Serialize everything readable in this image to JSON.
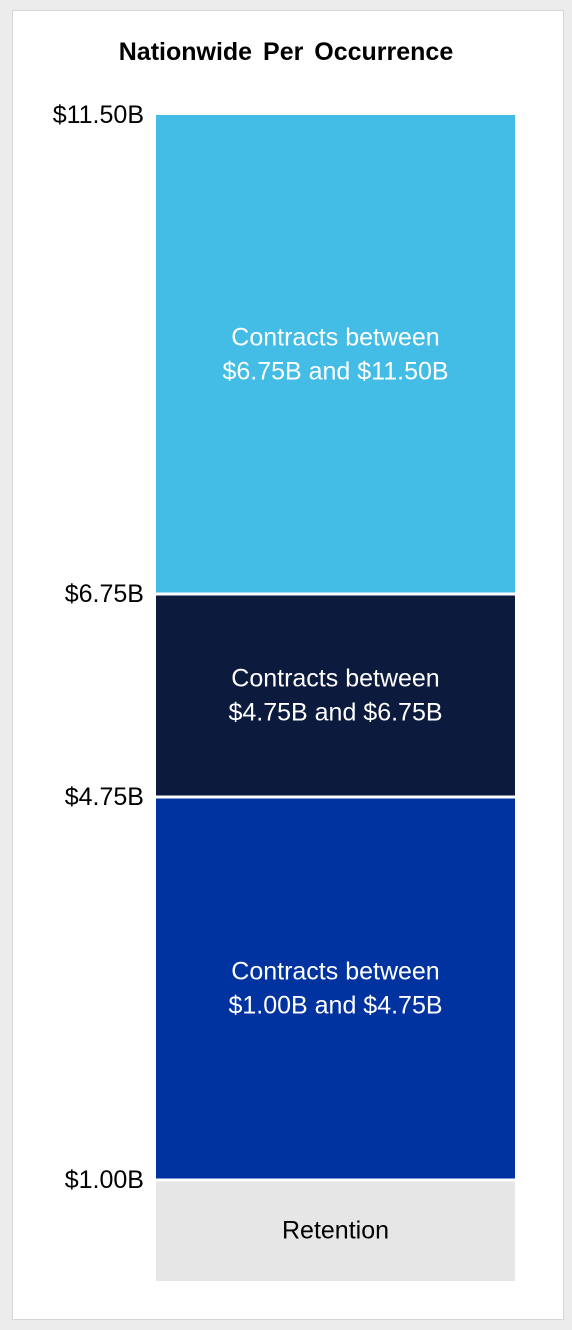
{
  "chart_data": {
    "type": "stacked-tower",
    "title": "Nationwide Per Occurrence",
    "xlabel": "",
    "ylabel": "",
    "ylim": [
      0.0,
      11.5
    ],
    "grid": false,
    "legend": "none",
    "ticks": [
      {
        "value": 11.5,
        "label": "$11.50B"
      },
      {
        "value": 6.75,
        "label": "$6.75B"
      },
      {
        "value": 4.75,
        "label": "$4.75B"
      },
      {
        "value": 1.0,
        "label": "$1.00B"
      }
    ],
    "segments": [
      {
        "low": 0.0,
        "high": 1.0,
        "label_lines": [
          "Retention"
        ],
        "color": "#e6e6e6",
        "text_color": "#000000"
      },
      {
        "low": 1.0,
        "high": 4.75,
        "label_lines": [
          "Contracts between",
          "$1.00B and $4.75B"
        ],
        "color": "#0033a0",
        "text_color": "#ffffff"
      },
      {
        "low": 4.75,
        "high": 6.75,
        "label_lines": [
          "Contracts between",
          "$4.75B and $6.75B"
        ],
        "color": "#0c1a3e",
        "text_color": "#ffffff"
      },
      {
        "low": 6.75,
        "high": 11.5,
        "label_lines": [
          "Contracts between",
          "$6.75B and $11.50B"
        ],
        "color": "#43bce6",
        "text_color": "#ffffff"
      }
    ]
  }
}
